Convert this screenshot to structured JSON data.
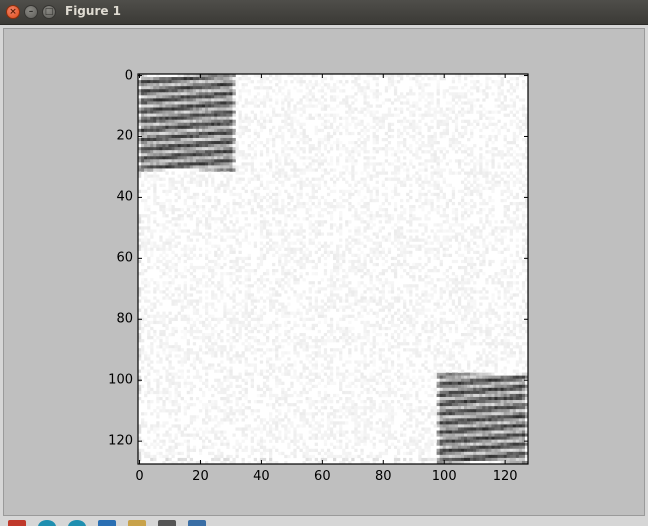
{
  "window": {
    "title": "Figure 1",
    "close_glyph": "×",
    "minimize_glyph": "–",
    "maximize_glyph": "□"
  },
  "toolbar": {
    "tools": [
      {
        "name": "home-icon",
        "color": "#c0392b"
      },
      {
        "name": "back-icon",
        "color": "#1f8fb0"
      },
      {
        "name": "forward-icon",
        "color": "#1f8fb0"
      },
      {
        "name": "pan-icon",
        "color": "#2a6fb3"
      },
      {
        "name": "zoom-icon",
        "color": "#c8a24a"
      },
      {
        "name": "configure-subplots-icon",
        "color": "#555555"
      },
      {
        "name": "save-icon",
        "color": "#3a6ea5"
      }
    ]
  },
  "chart_data": {
    "type": "heatmap",
    "colormap": "gray_r",
    "title": "",
    "xlabel": "",
    "ylabel": "",
    "xlim": [
      0,
      128
    ],
    "ylim": [
      128,
      0
    ],
    "xticks": [
      "0",
      "20",
      "40",
      "60",
      "80",
      "100",
      "120"
    ],
    "yticks": [
      "0",
      "20",
      "40",
      "60",
      "80",
      "100",
      "120"
    ],
    "grid": false,
    "blocks": [
      {
        "rows": [
          0,
          32
        ],
        "cols": [
          0,
          32
        ],
        "pattern": "dark horizontal stripes"
      },
      {
        "rows": [
          98,
          128
        ],
        "cols": [
          98,
          128
        ],
        "pattern": "dark horizontal stripes"
      }
    ],
    "background": "near-white noise"
  }
}
